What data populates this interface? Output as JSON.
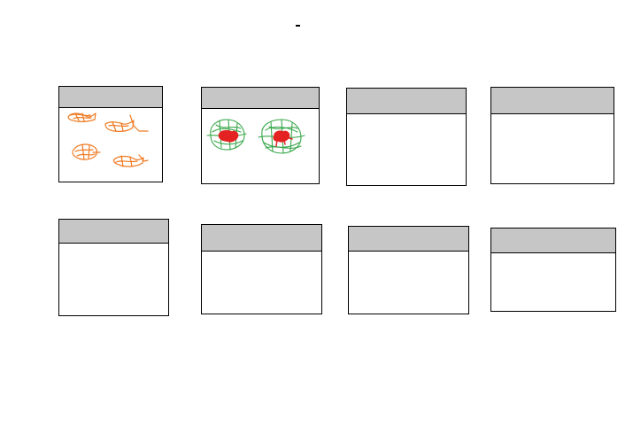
{
  "panels": [
    {
      "id": "panel-1",
      "sketch": "orange-doodles",
      "colors": [
        "#f07a22"
      ]
    },
    {
      "id": "panel-2",
      "sketch": "green-red-doodles",
      "colors": [
        "#3aa74b",
        "#e52222"
      ]
    },
    {
      "id": "panel-3",
      "sketch": "empty"
    },
    {
      "id": "panel-4",
      "sketch": "empty"
    },
    {
      "id": "panel-5",
      "sketch": "empty"
    },
    {
      "id": "panel-6",
      "sketch": "empty"
    },
    {
      "id": "panel-7",
      "sketch": "empty"
    },
    {
      "id": "panel-8",
      "sketch": "empty"
    }
  ],
  "colors": {
    "header_fill": "#c6c6c6",
    "border": "#000000",
    "background": "#ffffff",
    "orange": "#f07a22",
    "green": "#3aa74b",
    "red": "#e52222"
  }
}
